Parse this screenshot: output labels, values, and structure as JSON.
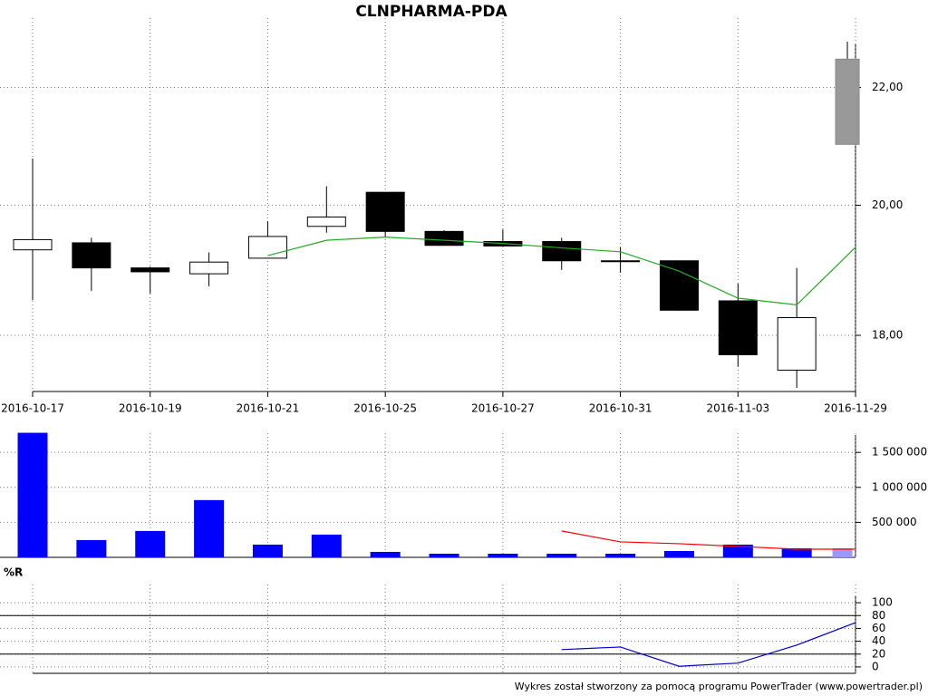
{
  "footer": "Wykres został stworzony za pomocą programu PowerTrader (www.powertrader.pl)",
  "chart_data": [
    {
      "type": "candlestick",
      "title": "CLNPHARMA-PDA",
      "categories": [
        "2016-10-17",
        null,
        "2016-10-19",
        null,
        "2016-10-21",
        null,
        "2016-10-25",
        null,
        "2016-10-27",
        null,
        "2016-10-31",
        null,
        "2016-11-03",
        null,
        "2016-11-29"
      ],
      "open": [
        19.29,
        19.4,
        19.01,
        18.92,
        19.16,
        19.66,
        20.21,
        19.58,
        19.42,
        19.42,
        19.12,
        19.12,
        18.51,
        17.5,
        21.01
      ],
      "high": [
        20.77,
        19.48,
        19.03,
        19.25,
        19.74,
        20.31,
        20.21,
        19.6,
        19.61,
        19.48,
        19.33,
        19.12,
        18.77,
        19.01,
        22.83
      ],
      "low": [
        18.52,
        18.66,
        18.62,
        18.73,
        19.16,
        19.56,
        19.5,
        19.36,
        19.35,
        18.98,
        18.94,
        18.36,
        17.55,
        17.25,
        21.01
      ],
      "close": [
        19.45,
        19.01,
        18.95,
        19.1,
        19.5,
        19.81,
        19.58,
        19.36,
        19.35,
        19.12,
        19.12,
        18.37,
        17.72,
        18.26,
        22.51
      ],
      "colors": [
        "#ffffff",
        "#000000",
        "#000000",
        "#ffffff",
        "#ffffff",
        "#ffffff",
        "#000000",
        "#000000",
        "#000000",
        "#000000",
        "#000000",
        "#000000",
        "#000000",
        "#ffffff",
        "#999999"
      ],
      "series": [
        {
          "color": "#22aa22",
          "values": [
            null,
            null,
            null,
            null,
            19.2,
            19.44,
            19.49,
            19.44,
            19.39,
            19.32,
            19.26,
            18.96,
            18.55,
            18.45,
            19.33
          ]
        }
      ],
      "log_scale": true,
      "ylim": [
        17.2,
        23.1
      ],
      "yticks": [
        {
          "value": 18,
          "label": "18,00"
        },
        {
          "value": 20,
          "label": "20,00"
        },
        {
          "value": 22,
          "label": "22,00"
        }
      ],
      "grid": true
    },
    {
      "type": "bar",
      "values": [
        1780000,
        247000,
        377000,
        818000,
        182000,
        325000,
        78000,
        52000,
        52000,
        52000,
        52000,
        91000,
        182000,
        130000,
        130000
      ],
      "colors": [
        "#0000ff",
        "#0000ff",
        "#0000ff",
        "#0000ff",
        "#0000ff",
        "#0000ff",
        "#0000ff",
        "#0000ff",
        "#0000ff",
        "#0000ff",
        "#0000ff",
        "#0000ff",
        "#0000ff",
        "#0000ff",
        "#9999ff"
      ],
      "series": [
        {
          "color": "#ff0000",
          "values": [
            null,
            null,
            null,
            null,
            null,
            null,
            null,
            null,
            null,
            377000,
            221000,
            195000,
            156000,
            117000,
            117000
          ]
        }
      ],
      "ylim": [
        0,
        1800000
      ],
      "yticks": [
        {
          "value": 500000,
          "label": "500 000"
        },
        {
          "value": 1000000,
          "label": "1 000 000"
        },
        {
          "value": 1500000,
          "label": "1 500 000"
        }
      ],
      "grid": true
    },
    {
      "type": "line",
      "title": "%R",
      "series": [
        {
          "color": "#0000cc",
          "values": [
            null,
            null,
            null,
            null,
            null,
            null,
            null,
            null,
            null,
            27,
            31,
            1,
            6,
            34,
            69
          ]
        }
      ],
      "levels": [
        20,
        80
      ],
      "ylim": [
        -10,
        110
      ],
      "yticks": [
        0,
        20,
        40,
        60,
        80,
        100
      ],
      "grid": true
    }
  ]
}
